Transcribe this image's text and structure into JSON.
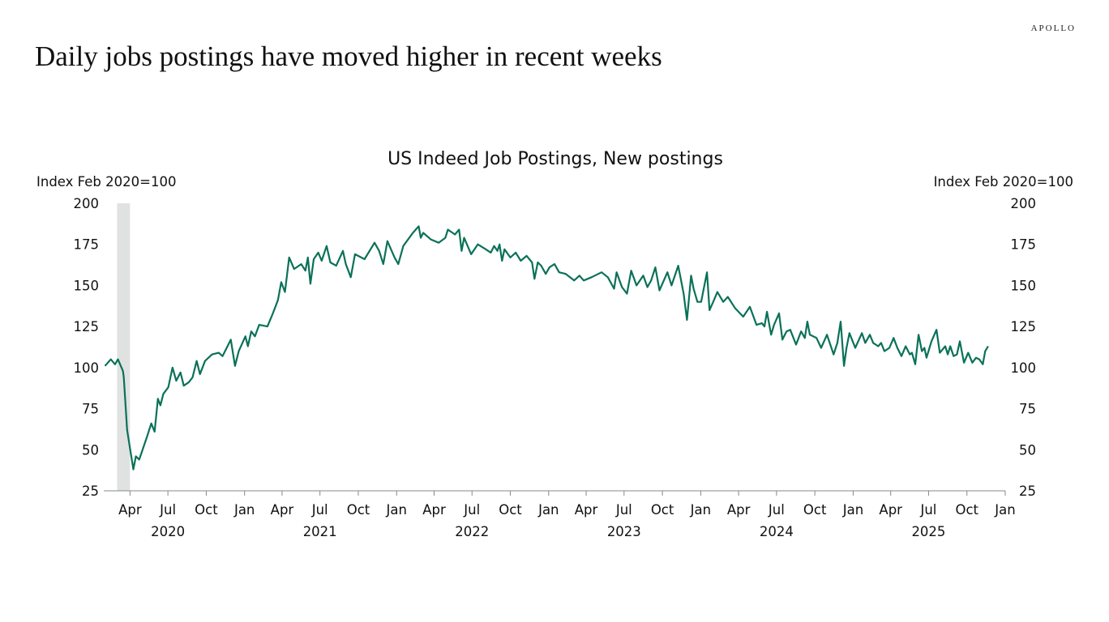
{
  "page": {
    "headline": "Daily jobs postings have moved higher in recent weeks",
    "logo_text": "APOLLO"
  },
  "chart_data": {
    "type": "line",
    "title": "US Indeed Job Postings, New postings",
    "ylabel_left": "Index Feb 2020=100",
    "ylabel_right": "Index Feb 2020=100",
    "ylim": [
      25,
      200
    ],
    "yticks": [
      25,
      50,
      75,
      100,
      125,
      150,
      175,
      200
    ],
    "xlim": [
      "2020-01-29",
      "2026-01-01"
    ],
    "xticks": [
      {
        "date": "2020-04-01",
        "label": "Apr"
      },
      {
        "date": "2020-07-01",
        "label": "Jul"
      },
      {
        "date": "2020-10-01",
        "label": "Oct"
      },
      {
        "date": "2021-01-01",
        "label": "Jan"
      },
      {
        "date": "2021-04-01",
        "label": "Apr"
      },
      {
        "date": "2021-07-01",
        "label": "Jul"
      },
      {
        "date": "2021-10-01",
        "label": "Oct"
      },
      {
        "date": "2022-01-01",
        "label": "Jan"
      },
      {
        "date": "2022-04-01",
        "label": "Apr"
      },
      {
        "date": "2022-07-01",
        "label": "Jul"
      },
      {
        "date": "2022-10-01",
        "label": "Oct"
      },
      {
        "date": "2023-01-01",
        "label": "Jan"
      },
      {
        "date": "2023-04-01",
        "label": "Apr"
      },
      {
        "date": "2023-07-01",
        "label": "Jul"
      },
      {
        "date": "2023-10-01",
        "label": "Oct"
      },
      {
        "date": "2024-01-01",
        "label": "Jan"
      },
      {
        "date": "2024-04-01",
        "label": "Apr"
      },
      {
        "date": "2024-07-01",
        "label": "Jul"
      },
      {
        "date": "2024-10-01",
        "label": "Oct"
      },
      {
        "date": "2025-01-01",
        "label": "Jan"
      },
      {
        "date": "2025-04-01",
        "label": "Apr"
      },
      {
        "date": "2025-07-01",
        "label": "Jul"
      },
      {
        "date": "2025-10-01",
        "label": "Oct"
      },
      {
        "date": "2026-01-01",
        "label": "Jan"
      }
    ],
    "year_labels": [
      {
        "date": "2020-07-01",
        "label": "2020"
      },
      {
        "date": "2021-07-01",
        "label": "2021"
      },
      {
        "date": "2022-07-01",
        "label": "2022"
      },
      {
        "date": "2023-07-01",
        "label": "2023"
      },
      {
        "date": "2024-07-01",
        "label": "2024"
      },
      {
        "date": "2025-07-01",
        "label": "2025"
      }
    ],
    "grid": false,
    "legend": "none",
    "recession_shading": {
      "start": "2020-03-01",
      "end": "2020-04-01",
      "color": "#e0e2e1"
    },
    "series": [
      {
        "color": "#0a7158",
        "points": [
          [
            "2020-02-01",
            101
          ],
          [
            "2020-02-15",
            105
          ],
          [
            "2020-02-25",
            102
          ],
          [
            "2020-03-03",
            105
          ],
          [
            "2020-03-15",
            98
          ],
          [
            "2020-03-17",
            94
          ],
          [
            "2020-03-25",
            62
          ],
          [
            "2020-04-09",
            38
          ],
          [
            "2020-04-15",
            46
          ],
          [
            "2020-04-23",
            44
          ],
          [
            "2020-05-12",
            58
          ],
          [
            "2020-05-22",
            66
          ],
          [
            "2020-05-30",
            61
          ],
          [
            "2020-06-07",
            81
          ],
          [
            "2020-06-13",
            77
          ],
          [
            "2020-06-20",
            84
          ],
          [
            "2020-07-02",
            88
          ],
          [
            "2020-07-12",
            100
          ],
          [
            "2020-07-21",
            92
          ],
          [
            "2020-07-31",
            97
          ],
          [
            "2020-08-08",
            89
          ],
          [
            "2020-08-20",
            91
          ],
          [
            "2020-08-29",
            94
          ],
          [
            "2020-09-08",
            104
          ],
          [
            "2020-09-16",
            96
          ],
          [
            "2020-09-28",
            104
          ],
          [
            "2020-10-15",
            108
          ],
          [
            "2020-10-31",
            109
          ],
          [
            "2020-11-09",
            107
          ],
          [
            "2020-11-29",
            117
          ],
          [
            "2020-12-09",
            101
          ],
          [
            "2020-12-18",
            110
          ],
          [
            "2021-01-03",
            119
          ],
          [
            "2021-01-09",
            113
          ],
          [
            "2021-01-17",
            122
          ],
          [
            "2021-01-26",
            119
          ],
          [
            "2021-02-05",
            126
          ],
          [
            "2021-02-25",
            125
          ],
          [
            "2021-03-10",
            133
          ],
          [
            "2021-03-22",
            141
          ],
          [
            "2021-03-30",
            152
          ],
          [
            "2021-04-08",
            146
          ],
          [
            "2021-04-18",
            167
          ],
          [
            "2021-04-30",
            160
          ],
          [
            "2021-05-17",
            163
          ],
          [
            "2021-05-27",
            159
          ],
          [
            "2021-06-02",
            167
          ],
          [
            "2021-06-08",
            151
          ],
          [
            "2021-06-16",
            166
          ],
          [
            "2021-06-27",
            170
          ],
          [
            "2021-07-05",
            165
          ],
          [
            "2021-07-17",
            174
          ],
          [
            "2021-07-26",
            164
          ],
          [
            "2021-08-09",
            162
          ],
          [
            "2021-08-25",
            171
          ],
          [
            "2021-09-01",
            163
          ],
          [
            "2021-09-13",
            155
          ],
          [
            "2021-09-23",
            169
          ],
          [
            "2021-10-16",
            166
          ],
          [
            "2021-11-09",
            176
          ],
          [
            "2021-11-20",
            171
          ],
          [
            "2021-11-30",
            163
          ],
          [
            "2021-12-10",
            177
          ],
          [
            "2021-12-27",
            167
          ],
          [
            "2022-01-05",
            163
          ],
          [
            "2022-01-17",
            174
          ],
          [
            "2022-02-09",
            182
          ],
          [
            "2022-02-23",
            186
          ],
          [
            "2022-02-28",
            179
          ],
          [
            "2022-03-06",
            182
          ],
          [
            "2022-03-24",
            178
          ],
          [
            "2022-04-12",
            176
          ],
          [
            "2022-04-28",
            179
          ],
          [
            "2022-05-04",
            184
          ],
          [
            "2022-05-21",
            181
          ],
          [
            "2022-05-31",
            184
          ],
          [
            "2022-06-06",
            171
          ],
          [
            "2022-06-12",
            179
          ],
          [
            "2022-06-29",
            169
          ],
          [
            "2022-07-15",
            175
          ],
          [
            "2022-08-03",
            172
          ],
          [
            "2022-08-15",
            170
          ],
          [
            "2022-08-23",
            174
          ],
          [
            "2022-08-31",
            171
          ],
          [
            "2022-09-05",
            175
          ],
          [
            "2022-09-11",
            165
          ],
          [
            "2022-09-17",
            172
          ],
          [
            "2022-10-01",
            167
          ],
          [
            "2022-10-14",
            170
          ],
          [
            "2022-10-26",
            165
          ],
          [
            "2022-11-09",
            168
          ],
          [
            "2022-11-22",
            164
          ],
          [
            "2022-11-28",
            154
          ],
          [
            "2022-12-06",
            164
          ],
          [
            "2022-12-14",
            162
          ],
          [
            "2022-12-25",
            157
          ],
          [
            "2023-01-03",
            161
          ],
          [
            "2023-01-15",
            163
          ],
          [
            "2023-01-26",
            158
          ],
          [
            "2023-02-11",
            157
          ],
          [
            "2023-03-03",
            153
          ],
          [
            "2023-03-16",
            156
          ],
          [
            "2023-03-26",
            153
          ],
          [
            "2023-04-14",
            155
          ],
          [
            "2023-05-08",
            158
          ],
          [
            "2023-05-23",
            155
          ],
          [
            "2023-06-07",
            148
          ],
          [
            "2023-06-13",
            158
          ],
          [
            "2023-06-26",
            149
          ],
          [
            "2023-07-08",
            145
          ],
          [
            "2023-07-18",
            159
          ],
          [
            "2023-07-31",
            150
          ],
          [
            "2023-08-16",
            156
          ],
          [
            "2023-08-26",
            149
          ],
          [
            "2023-09-04",
            153
          ],
          [
            "2023-09-14",
            161
          ],
          [
            "2023-09-24",
            147
          ],
          [
            "2023-10-13",
            158
          ],
          [
            "2023-10-23",
            150
          ],
          [
            "2023-11-08",
            162
          ],
          [
            "2023-11-21",
            145
          ],
          [
            "2023-11-29",
            129
          ],
          [
            "2023-12-09",
            156
          ],
          [
            "2023-12-15",
            148
          ],
          [
            "2023-12-24",
            140
          ],
          [
            "2024-01-02",
            140
          ],
          [
            "2024-01-16",
            158
          ],
          [
            "2024-01-22",
            135
          ],
          [
            "2024-01-31",
            140
          ],
          [
            "2024-02-10",
            146
          ],
          [
            "2024-02-24",
            140
          ],
          [
            "2024-03-06",
            143
          ],
          [
            "2024-03-24",
            136
          ],
          [
            "2024-04-12",
            131
          ],
          [
            "2024-04-28",
            137
          ],
          [
            "2024-05-14",
            126
          ],
          [
            "2024-05-27",
            127
          ],
          [
            "2024-06-02",
            125
          ],
          [
            "2024-06-08",
            134
          ],
          [
            "2024-06-18",
            120
          ],
          [
            "2024-06-25",
            126
          ],
          [
            "2024-07-07",
            133
          ],
          [
            "2024-07-15",
            117
          ],
          [
            "2024-07-25",
            122
          ],
          [
            "2024-08-03",
            123
          ],
          [
            "2024-08-17",
            114
          ],
          [
            "2024-08-29",
            122
          ],
          [
            "2024-09-07",
            118
          ],
          [
            "2024-09-13",
            128
          ],
          [
            "2024-09-19",
            120
          ],
          [
            "2024-10-05",
            118
          ],
          [
            "2024-10-16",
            112
          ],
          [
            "2024-10-30",
            120
          ],
          [
            "2024-11-15",
            108
          ],
          [
            "2024-11-24",
            115
          ],
          [
            "2024-12-02",
            128
          ],
          [
            "2024-12-10",
            101
          ],
          [
            "2024-12-16",
            112
          ],
          [
            "2024-12-23",
            121
          ],
          [
            "2025-01-06",
            112
          ],
          [
            "2025-01-22",
            121
          ],
          [
            "2025-01-30",
            115
          ],
          [
            "2025-02-10",
            120
          ],
          [
            "2025-02-18",
            115
          ],
          [
            "2025-03-02",
            113
          ],
          [
            "2025-03-09",
            115
          ],
          [
            "2025-03-17",
            110
          ],
          [
            "2025-03-29",
            112
          ],
          [
            "2025-04-08",
            118
          ],
          [
            "2025-04-17",
            112
          ],
          [
            "2025-04-27",
            107
          ],
          [
            "2025-05-07",
            113
          ],
          [
            "2025-05-17",
            108
          ],
          [
            "2025-05-22",
            109
          ],
          [
            "2025-05-30",
            102
          ],
          [
            "2025-06-07",
            120
          ],
          [
            "2025-06-15",
            110
          ],
          [
            "2025-06-21",
            112
          ],
          [
            "2025-06-26",
            106
          ],
          [
            "2025-07-08",
            116
          ],
          [
            "2025-07-20",
            123
          ],
          [
            "2025-07-28",
            109
          ],
          [
            "2025-08-10",
            113
          ],
          [
            "2025-08-16",
            108
          ],
          [
            "2025-08-22",
            113
          ],
          [
            "2025-08-30",
            107
          ],
          [
            "2025-09-07",
            108
          ],
          [
            "2025-09-14",
            116
          ],
          [
            "2025-09-24",
            103
          ],
          [
            "2025-10-04",
            109
          ],
          [
            "2025-10-14",
            103
          ],
          [
            "2025-10-23",
            106
          ],
          [
            "2025-10-31",
            105
          ],
          [
            "2025-11-08",
            102
          ],
          [
            "2025-11-14",
            110
          ],
          [
            "2025-11-21",
            113
          ]
        ]
      }
    ]
  }
}
